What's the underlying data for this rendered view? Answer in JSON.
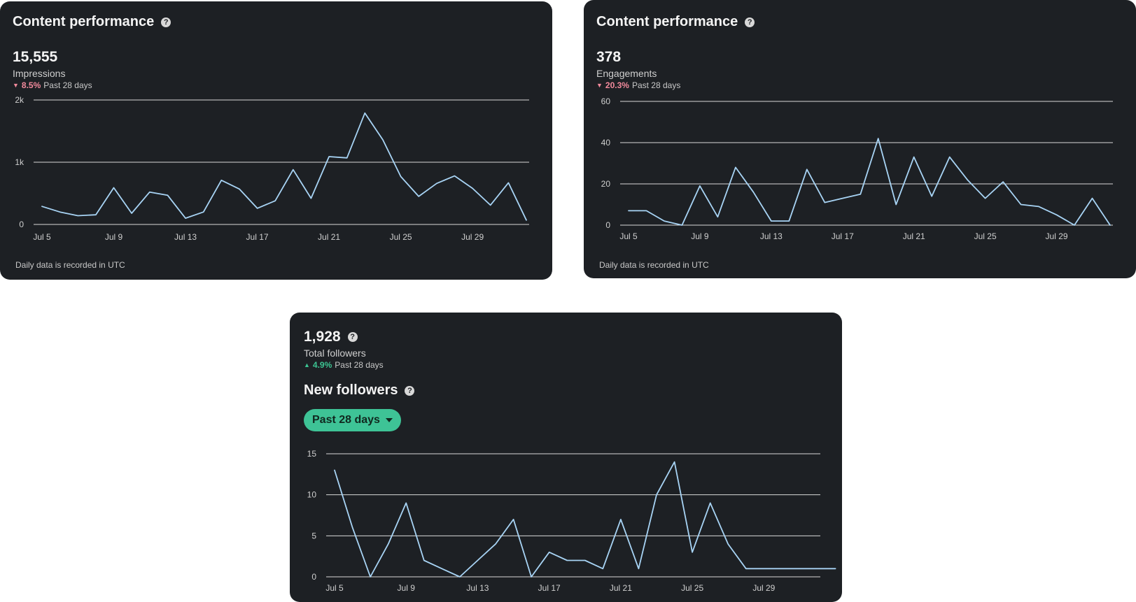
{
  "cards": {
    "impressions": {
      "title": "Content performance",
      "help": "?",
      "value": "15,555",
      "label": "Impressions",
      "change_pct": "8.5%",
      "change_period": "Past 28 days",
      "change_direction": "down",
      "footnote": "Daily data is recorded in UTC"
    },
    "engagements": {
      "title": "Content performance",
      "help": "?",
      "value": "378",
      "label": "Engagements",
      "change_pct": "20.3%",
      "change_period": "Past 28 days",
      "change_direction": "down",
      "footnote": "Daily data is recorded in UTC"
    },
    "followers": {
      "help": "?",
      "value": "1,928",
      "label": "Total followers",
      "change_pct": "4.9%",
      "change_period": "Past 28 days",
      "change_direction": "up",
      "section_title": "New followers",
      "range_selector": "Past 28 days"
    }
  },
  "colors": {
    "card_background": "#1d2024",
    "line": "#a8d4f5",
    "negative": "#f28a9c",
    "positive": "#3cc492",
    "pill": "#3ec396"
  },
  "chart_data": [
    {
      "type": "line",
      "x": [
        "Jul 5",
        "Jul 6",
        "Jul 7",
        "Jul 8",
        "Jul 9",
        "Jul 10",
        "Jul 11",
        "Jul 12",
        "Jul 13",
        "Jul 14",
        "Jul 15",
        "Jul 16",
        "Jul 17",
        "Jul 18",
        "Jul 19",
        "Jul 20",
        "Jul 21",
        "Jul 22",
        "Jul 23",
        "Jul 24",
        "Jul 25",
        "Jul 26",
        "Jul 27",
        "Jul 28",
        "Jul 29",
        "Jul 30",
        "Jul 31",
        "Aug 1"
      ],
      "x_tick_labels": [
        "Jul 5",
        "Jul 9",
        "Jul 13",
        "Jul 17",
        "Jul 21",
        "Jul 25",
        "Jul 29"
      ],
      "y_tick_labels": [
        "0",
        "1k",
        "2k"
      ],
      "y_ticks": [
        0,
        1000,
        2000
      ],
      "ylim": [
        0,
        2000
      ],
      "grid": true,
      "series": [
        {
          "values": [
            290,
            200,
            140,
            155,
            590,
            180,
            520,
            470,
            100,
            200,
            710,
            570,
            260,
            380,
            880,
            420,
            1090,
            1070,
            1790,
            1360,
            770,
            450,
            660,
            780,
            580,
            310,
            670,
            70
          ]
        }
      ]
    },
    {
      "type": "line",
      "x": [
        "Jul 5",
        "Jul 6",
        "Jul 7",
        "Jul 8",
        "Jul 9",
        "Jul 10",
        "Jul 11",
        "Jul 12",
        "Jul 13",
        "Jul 14",
        "Jul 15",
        "Jul 16",
        "Jul 17",
        "Jul 18",
        "Jul 19",
        "Jul 20",
        "Jul 21",
        "Jul 22",
        "Jul 23",
        "Jul 24",
        "Jul 25",
        "Jul 26",
        "Jul 27",
        "Jul 28",
        "Jul 29",
        "Jul 30",
        "Jul 31",
        "Aug 1"
      ],
      "x_tick_labels": [
        "Jul 5",
        "Jul 9",
        "Jul 13",
        "Jul 17",
        "Jul 21",
        "Jul 25",
        "Jul 29"
      ],
      "y_tick_labels": [
        "0",
        "20",
        "40",
        "60"
      ],
      "y_ticks": [
        0,
        20,
        40,
        60
      ],
      "ylim": [
        0,
        60
      ],
      "grid": true,
      "series": [
        {
          "values": [
            7,
            7,
            2,
            0,
            19,
            4,
            28,
            16,
            2,
            2,
            27,
            11,
            13,
            15,
            42,
            10,
            33,
            14,
            33,
            22,
            13,
            21,
            10,
            9,
            5,
            0,
            13,
            0
          ]
        }
      ]
    },
    {
      "type": "line",
      "x": [
        "Jul 5",
        "Jul 6",
        "Jul 7",
        "Jul 8",
        "Jul 9",
        "Jul 10",
        "Jul 11",
        "Jul 12",
        "Jul 13",
        "Jul 14",
        "Jul 15",
        "Jul 16",
        "Jul 17",
        "Jul 18",
        "Jul 19",
        "Jul 20",
        "Jul 21",
        "Jul 22",
        "Jul 23",
        "Jul 24",
        "Jul 25",
        "Jul 26",
        "Jul 27",
        "Jul 28",
        "Jul 29",
        "Jul 30",
        "Jul 31",
        "Aug 1",
        "Aug 2"
      ],
      "x_tick_labels": [
        "Jul 5",
        "Jul 9",
        "Jul 13",
        "Jul 17",
        "Jul 21",
        "Jul 25",
        "Jul 29"
      ],
      "y_tick_labels": [
        "0",
        "5",
        "10",
        "15"
      ],
      "y_ticks": [
        0,
        5,
        10,
        15
      ],
      "ylim": [
        0,
        15
      ],
      "grid": true,
      "series": [
        {
          "values": [
            13,
            6,
            0,
            4,
            9,
            2,
            1,
            0,
            2,
            4,
            7,
            0,
            3,
            2,
            2,
            1,
            7,
            1,
            10,
            14,
            3,
            9,
            4,
            1,
            1,
            1,
            1,
            1,
            1
          ]
        }
      ]
    }
  ]
}
